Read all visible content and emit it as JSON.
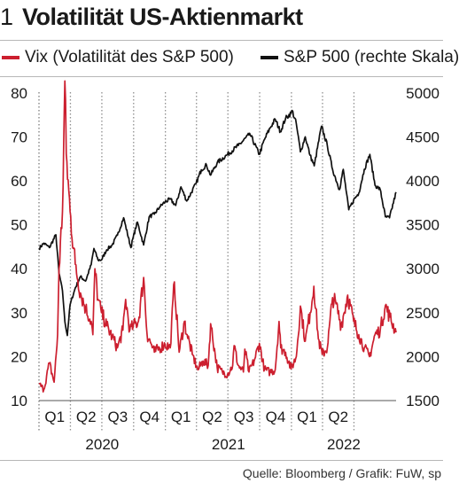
{
  "figure_number": "1",
  "title": "Volatilität US-Aktienmarkt",
  "source": "Quelle: Bloomberg / Grafik: FuW, sp",
  "colors": {
    "vix": "#cc1f2f",
    "spx": "#111111",
    "grid": "#8f8f8f",
    "rule": "#b7b7b7"
  },
  "chart_data": {
    "type": "line",
    "x_start": "2020-01-01",
    "x_end": "2022-10-31",
    "quarter_labels": [
      "Q1",
      "Q2",
      "Q3",
      "Q4",
      "Q1",
      "Q2",
      "Q3",
      "Q4",
      "Q1",
      "Q2"
    ],
    "year_labels": [
      "2020",
      "2021",
      "2022"
    ],
    "y_left": {
      "ticks": [
        "80",
        "70",
        "60",
        "50",
        "40",
        "30",
        "20",
        "10"
      ],
      "range": [
        10,
        85
      ]
    },
    "y_right": {
      "ticks": [
        "5000",
        "4500",
        "4000",
        "3500",
        "3000",
        "2500",
        "2000",
        "1500"
      ],
      "range": [
        1500,
        5250
      ]
    },
    "legend": {
      "position": "top"
    },
    "series": [
      {
        "name": "Vix (Volatilität des S&P 500)",
        "axis": "left",
        "x": [
          "2020-01-01",
          "2020-01-15",
          "2020-01-31",
          "2020-02-14",
          "2020-02-24",
          "2020-02-28",
          "2020-03-09",
          "2020-03-16",
          "2020-03-20",
          "2020-03-31",
          "2020-04-15",
          "2020-04-30",
          "2020-05-15",
          "2020-05-31",
          "2020-06-05",
          "2020-06-11",
          "2020-06-20",
          "2020-06-30",
          "2020-07-15",
          "2020-07-31",
          "2020-08-15",
          "2020-08-31",
          "2020-09-08",
          "2020-09-20",
          "2020-09-30",
          "2020-10-15",
          "2020-10-30",
          "2020-11-09",
          "2020-11-20",
          "2020-11-30",
          "2020-12-15",
          "2020-12-31",
          "2021-01-15",
          "2021-01-27",
          "2021-02-10",
          "2021-02-25",
          "2021-03-05",
          "2021-03-20",
          "2021-04-05",
          "2021-04-20",
          "2021-05-05",
          "2021-05-12",
          "2021-05-31",
          "2021-06-15",
          "2021-06-30",
          "2021-07-15",
          "2021-07-19",
          "2021-07-31",
          "2021-08-15",
          "2021-08-19",
          "2021-08-31",
          "2021-09-15",
          "2021-09-30",
          "2021-10-15",
          "2021-10-31",
          "2021-11-15",
          "2021-11-26",
          "2021-12-01",
          "2021-12-15",
          "2021-12-31",
          "2022-01-15",
          "2022-01-27",
          "2022-02-10",
          "2022-02-24",
          "2022-03-07",
          "2022-03-20",
          "2022-03-31",
          "2022-04-15",
          "2022-04-30",
          "2022-05-10",
          "2022-05-25",
          "2022-06-13",
          "2022-06-30",
          "2022-07-15",
          "2022-07-31",
          "2022-08-15",
          "2022-08-31",
          "2022-09-15",
          "2022-09-30",
          "2022-10-13",
          "2022-10-31"
        ],
        "values": [
          13.8,
          12.5,
          18.5,
          14.2,
          25,
          40,
          53,
          82.7,
          66,
          53,
          41,
          34.5,
          31,
          28,
          25,
          40,
          33,
          30,
          27,
          24.5,
          22,
          26,
          33,
          26,
          27,
          28,
          38,
          25,
          23,
          21,
          22,
          22.8,
          22,
          37,
          21,
          28,
          25,
          20.5,
          17,
          19,
          18,
          27.5,
          17.5,
          16.5,
          16,
          18,
          22.5,
          18,
          16.5,
          21.7,
          16.5,
          19,
          23,
          17,
          16.5,
          17,
          28,
          22,
          21,
          17.2,
          20,
          31.5,
          23.5,
          30,
          36,
          24,
          20.5,
          22,
          33.4,
          32,
          27,
          34,
          28,
          25,
          22,
          20,
          25,
          26,
          31.6,
          29,
          25.5
        ]
      },
      {
        "name": "S&P 500 (rechte Skala)",
        "axis": "right",
        "x": [
          "2020-01-01",
          "2020-01-15",
          "2020-01-31",
          "2020-02-19",
          "2020-02-28",
          "2020-03-09",
          "2020-03-16",
          "2020-03-23",
          "2020-03-31",
          "2020-04-15",
          "2020-04-30",
          "2020-05-15",
          "2020-05-31",
          "2020-06-08",
          "2020-06-20",
          "2020-06-30",
          "2020-07-15",
          "2020-07-31",
          "2020-08-15",
          "2020-09-02",
          "2020-09-23",
          "2020-09-30",
          "2020-10-12",
          "2020-10-30",
          "2020-11-15",
          "2020-11-30",
          "2020-12-15",
          "2020-12-31",
          "2021-01-15",
          "2021-01-31",
          "2021-02-15",
          "2021-03-04",
          "2021-03-31",
          "2021-04-15",
          "2021-04-30",
          "2021-05-12",
          "2021-05-31",
          "2021-06-30",
          "2021-07-31",
          "2021-08-31",
          "2021-09-02",
          "2021-09-30",
          "2021-10-15",
          "2021-10-31",
          "2021-11-15",
          "2021-11-30",
          "2021-12-15",
          "2021-12-31",
          "2022-01-03",
          "2022-01-15",
          "2022-01-27",
          "2022-02-10",
          "2022-02-24",
          "2022-03-08",
          "2022-03-29",
          "2022-04-15",
          "2022-04-30",
          "2022-05-20",
          "2022-05-31",
          "2022-06-16",
          "2022-06-30",
          "2022-07-15",
          "2022-07-31",
          "2022-08-16",
          "2022-08-31",
          "2022-09-15",
          "2022-09-30",
          "2022-10-12",
          "2022-10-31"
        ],
        "values": [
          3230,
          3290,
          3240,
          3385,
          2950,
          2750,
          2400,
          2240,
          2590,
          2780,
          2910,
          2860,
          3045,
          3230,
          3100,
          3100,
          3215,
          3270,
          3380,
          3580,
          3240,
          3360,
          3530,
          3270,
          3590,
          3620,
          3700,
          3760,
          3790,
          3720,
          3930,
          3770,
          3970,
          4125,
          4180,
          4065,
          4205,
          4300,
          4400,
          4520,
          4540,
          4300,
          4470,
          4600,
          4700,
          4560,
          4710,
          4770,
          4800,
          4650,
          4330,
          4500,
          4290,
          4170,
          4620,
          4400,
          4130,
          3900,
          4130,
          3670,
          3780,
          3860,
          4130,
          4300,
          3950,
          3900,
          3590,
          3580,
          3870
        ]
      }
    ]
  }
}
